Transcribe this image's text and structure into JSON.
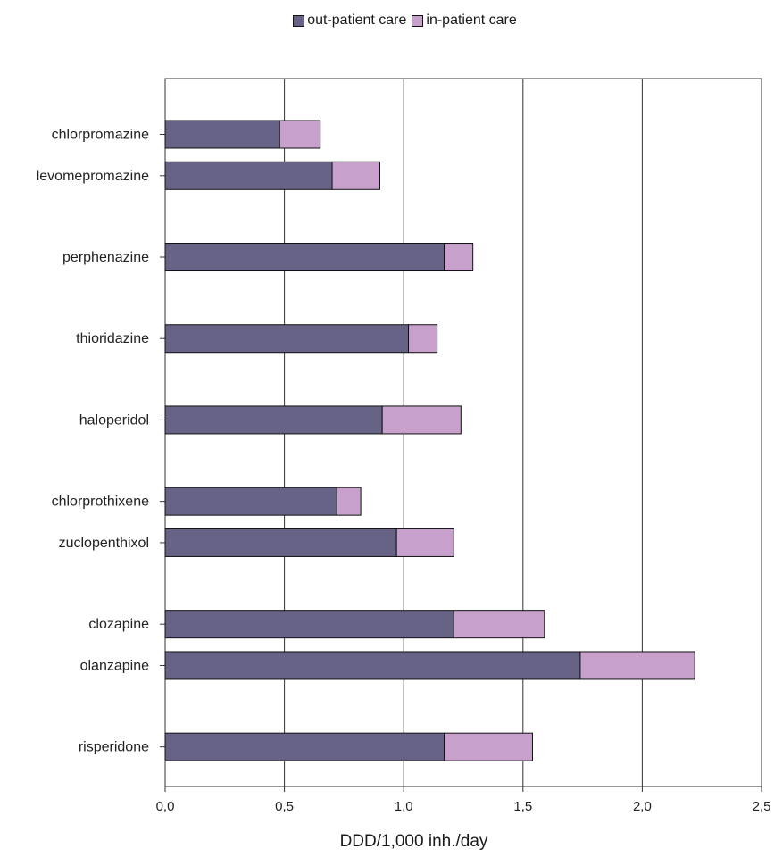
{
  "chart_data": {
    "type": "bar",
    "orientation": "horizontal",
    "stacked": true,
    "xlabel": "DDD/1,000 inh./day",
    "xlim": [
      0,
      2.5
    ],
    "xticks": [
      "0,0",
      "0,5",
      "1,0",
      "1,5",
      "2,0",
      "2,5"
    ],
    "grid": true,
    "legend_position": "top",
    "categories": [
      "chlorpromazine",
      "levomepromazine",
      "perphenazine",
      "thioridazine",
      "haloperidol",
      "chlorprothixene",
      "zuclopenthixol",
      "clozapine",
      "olanzapine",
      "risperidone"
    ],
    "groups": [
      [
        0,
        1
      ],
      [
        2
      ],
      [
        3
      ],
      [
        4
      ],
      [
        5,
        6
      ],
      [
        7,
        8
      ],
      [
        9
      ]
    ],
    "series": [
      {
        "name": "out-patient care",
        "color": "#676386",
        "values": [
          0.48,
          0.7,
          1.17,
          1.02,
          0.91,
          0.72,
          0.97,
          1.21,
          1.74,
          1.17
        ]
      },
      {
        "name": "in-patient care",
        "color": "#c7a0cc",
        "values": [
          0.17,
          0.2,
          0.12,
          0.12,
          0.33,
          0.1,
          0.24,
          0.38,
          0.48,
          0.37
        ]
      }
    ]
  }
}
